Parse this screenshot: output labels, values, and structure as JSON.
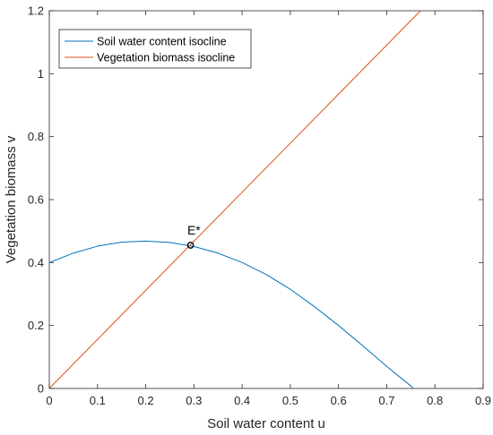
{
  "chart_data": {
    "type": "line",
    "title": "",
    "xlabel": "Soil water content u",
    "ylabel": "Vegetation biomass v",
    "xlim": [
      0,
      0.9
    ],
    "ylim": [
      0,
      1.2
    ],
    "xticks": [
      0,
      0.1,
      0.2,
      0.3,
      0.4,
      0.5,
      0.6,
      0.7,
      0.8,
      0.9
    ],
    "xtick_labels": [
      "0",
      "0.1",
      "0.2",
      "0.3",
      "0.4",
      "0.5",
      "0.6",
      "0.7",
      "0.8",
      "0.9"
    ],
    "yticks": [
      0,
      0.2,
      0.4,
      0.6,
      0.8,
      1,
      1.2
    ],
    "ytick_labels": [
      "0",
      "0.2",
      "0.4",
      "0.6",
      "0.8",
      "1",
      "1.2"
    ],
    "grid": false,
    "legend_position": "top-left",
    "series": [
      {
        "name": "Soil water content isocline",
        "color": "#0072BD",
        "x": [
          0,
          0.05,
          0.1,
          0.15,
          0.2,
          0.25,
          0.3,
          0.35,
          0.4,
          0.45,
          0.5,
          0.55,
          0.6,
          0.65,
          0.7,
          0.75,
          0.8,
          0.838
        ],
        "y": [
          0.4,
          0.43,
          0.452,
          0.465,
          0.468,
          0.464,
          0.451,
          0.43,
          0.4,
          0.362,
          0.315,
          0.26,
          0.2,
          0.136,
          0.07,
          0.008,
          -0.065,
          -0.125
        ]
      },
      {
        "name": "Vegetation biomass isocline",
        "color": "#D95319",
        "x": [
          0,
          0.77
        ],
        "y": [
          0,
          1.2
        ]
      }
    ],
    "annotations": [
      {
        "text": "E*",
        "x": 0.29,
        "y": 0.455
      }
    ],
    "equilibrium_point": {
      "x": 0.293,
      "y": 0.455
    }
  }
}
